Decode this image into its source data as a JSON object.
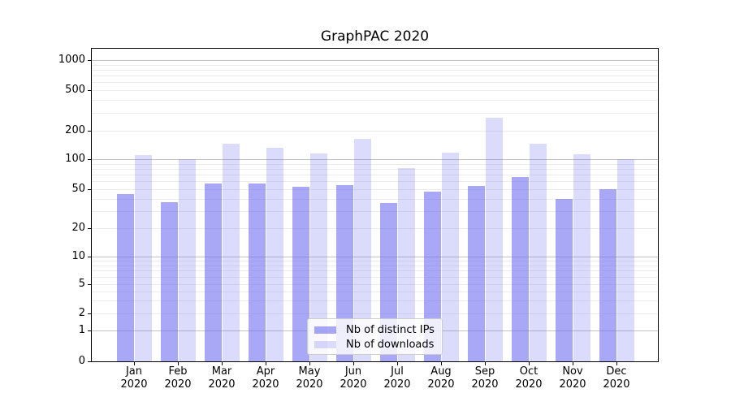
{
  "chart_data": {
    "type": "bar",
    "title": "GraphPAC 2020",
    "categories": [
      "Jan",
      "Feb",
      "Mar",
      "Apr",
      "May",
      "Jun",
      "Jul",
      "Aug",
      "Sep",
      "Oct",
      "Nov",
      "Dec"
    ],
    "x_tick_second_line": "2020",
    "series": [
      {
        "name": "Nb of distinct IPs",
        "color": "rgba(105,105,240,0.58)",
        "values": [
          45,
          37,
          57,
          57,
          53,
          55,
          36,
          47,
          54,
          66,
          40,
          50
        ]
      },
      {
        "name": "Nb of downloads",
        "color": "rgba(105,105,240,0.24)",
        "values": [
          110,
          100,
          145,
          132,
          115,
          165,
          82,
          118,
          270,
          145,
          112,
          100
        ]
      }
    ],
    "yscale": "symlog",
    "y_ticks": [
      0,
      1,
      2,
      5,
      10,
      20,
      50,
      100,
      200,
      500,
      1000
    ],
    "ylim": [
      0,
      1300
    ],
    "grid": true,
    "legend_position": "lower center",
    "colors": {
      "grid_major": "#c3c3c3",
      "grid_minor": "#ececec",
      "axis": "#000000",
      "legend_border": "#cccccc"
    }
  }
}
